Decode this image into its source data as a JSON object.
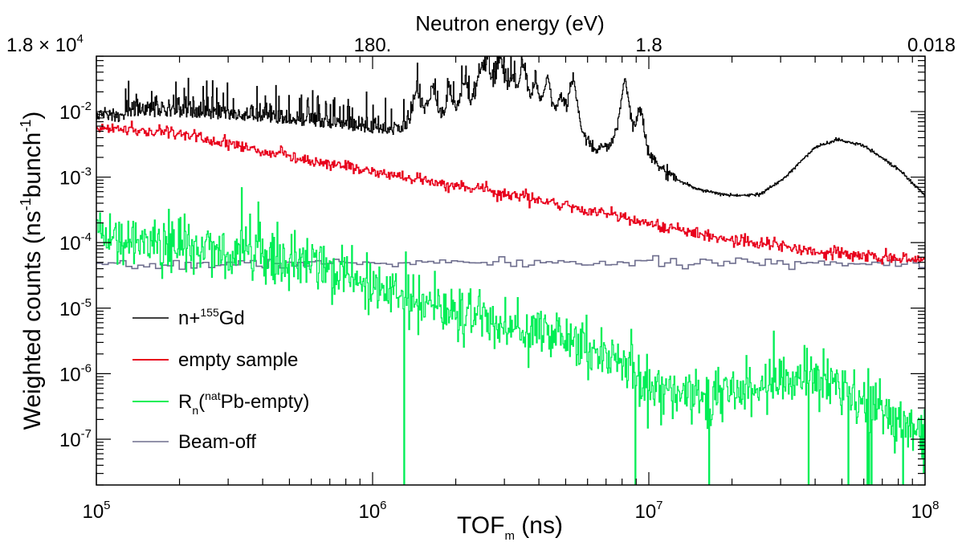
{
  "chart_data": {
    "type": "line",
    "title": "",
    "x_axis": {
      "label_main": "TOF",
      "label_sub": "m",
      "label_unit": " (ns)",
      "scale": "log",
      "range": [
        100000,
        100000000
      ],
      "ticks": [
        {
          "value": 100000,
          "base": "10",
          "exp": "5"
        },
        {
          "value": 1000000,
          "base": "10",
          "exp": "6"
        },
        {
          "value": 10000000,
          "base": "10",
          "exp": "7"
        },
        {
          "value": 100000000,
          "base": "10",
          "exp": "8"
        }
      ]
    },
    "y_axis": {
      "label_main": "Weighted counts (ns",
      "label_sup1": "-1",
      "label_mid": "bunch",
      "label_sup2": "-1",
      "label_end": ")",
      "scale": "log",
      "range": [
        2e-08,
        0.07
      ],
      "ticks": [
        {
          "value": 1e-07,
          "base": "10",
          "exp": "-7"
        },
        {
          "value": 1e-06,
          "base": "10",
          "exp": "-6"
        },
        {
          "value": 1e-05,
          "base": "10",
          "exp": "-5"
        },
        {
          "value": 0.0001,
          "base": "10",
          "exp": "-4"
        },
        {
          "value": 0.001,
          "base": "10",
          "exp": "-3"
        },
        {
          "value": 0.01,
          "base": "10",
          "exp": "-2"
        }
      ]
    },
    "top_axis": {
      "label": "Neutron energy (eV)",
      "ticks": [
        {
          "tof": 100000,
          "label": "1.8",
          "mult": " × ",
          "base": "10",
          "exp": "4"
        },
        {
          "tof": 1000000,
          "label": "180."
        },
        {
          "tof": 10000000,
          "label": "1.8"
        },
        {
          "tof": 100000000,
          "label": "0.018"
        }
      ]
    },
    "legend": {
      "position": "bottom-left",
      "entries": [
        {
          "prefix": "n+",
          "sup": "155",
          "suffix": "Gd",
          "color": "#000000"
        },
        {
          "text": "empty sample",
          "color": "#e8001c"
        },
        {
          "prefix": "R",
          "sub": "n",
          "mid": "(",
          "sup": "nat",
          "suffix": "Pb-empty)",
          "color": "#00ee55"
        },
        {
          "text": "Beam-off",
          "color": "#6e6e8e"
        }
      ]
    },
    "series": [
      {
        "name": "n+155Gd",
        "color": "#000000",
        "baseline": [
          [
            100000,
            0.009
          ],
          [
            200000,
            0.0088
          ],
          [
            400000,
            0.0075
          ],
          [
            800000,
            0.0055
          ],
          [
            1500000,
            0.0035
          ],
          [
            3000000,
            0.0022
          ],
          [
            6000000,
            0.0013
          ],
          [
            10000000,
            0.0008
          ],
          [
            15000000,
            0.00045
          ],
          [
            20000000,
            0.0004
          ],
          [
            25000000,
            0.00045
          ],
          [
            30000000,
            0.0008
          ],
          [
            40000000,
            0.0028
          ],
          [
            48000000,
            0.0037
          ],
          [
            60000000,
            0.003
          ],
          [
            80000000,
            0.0013
          ],
          [
            100000000,
            0.0005
          ]
        ],
        "peaks": [
          {
            "tof": 1450000,
            "value": 0.018
          },
          {
            "tof": 1650000,
            "value": 0.02
          },
          {
            "tof": 1900000,
            "value": 0.016
          },
          {
            "tof": 2150000,
            "value": 0.022
          },
          {
            "tof": 2450000,
            "value": 0.03
          },
          {
            "tof": 2600000,
            "value": 0.04
          },
          {
            "tof": 2900000,
            "value": 0.055
          },
          {
            "tof": 3200000,
            "value": 0.022
          },
          {
            "tof": 3500000,
            "value": 0.045
          },
          {
            "tof": 3900000,
            "value": 0.018
          },
          {
            "tof": 4300000,
            "value": 0.03
          },
          {
            "tof": 4800000,
            "value": 0.012
          },
          {
            "tof": 5300000,
            "value": 0.03
          },
          {
            "tof": 6800000,
            "value": 0.0015
          },
          {
            "tof": 8200000,
            "value": 0.03
          },
          {
            "tof": 9300000,
            "value": 0.009
          }
        ]
      },
      {
        "name": "empty sample",
        "color": "#e8001c",
        "baseline": [
          [
            100000,
            0.0058
          ],
          [
            200000,
            0.0046
          ],
          [
            400000,
            0.0025
          ],
          [
            700000,
            0.0016
          ],
          [
            1000000,
            0.0012
          ],
          [
            2000000,
            0.00075
          ],
          [
            4000000,
            0.00045
          ],
          [
            7000000,
            0.00028
          ],
          [
            10000000,
            0.00019
          ],
          [
            20000000,
            0.00011
          ],
          [
            40000000,
            7.5e-05
          ],
          [
            70000000,
            6e-05
          ],
          [
            100000000,
            5.3e-05
          ]
        ]
      },
      {
        "name": "Rn(natPb-empty)",
        "color": "#00ee55",
        "baseline": [
          [
            100000,
            0.00011
          ],
          [
            200000,
            9e-05
          ],
          [
            400000,
            7e-05
          ],
          [
            700000,
            4.5e-05
          ],
          [
            1000000,
            2.2e-05
          ],
          [
            2000000,
            9e-06
          ],
          [
            4000000,
            4e-06
          ],
          [
            6000000,
            2.5e-06
          ],
          [
            8500000,
            1.2e-06
          ],
          [
            9500000,
            6e-07
          ],
          [
            15000000,
            4.5e-07
          ],
          [
            25000000,
            6e-07
          ],
          [
            40000000,
            9e-07
          ],
          [
            60000000,
            4e-07
          ],
          [
            100000000,
            9e-08
          ]
        ]
      },
      {
        "name": "Beam-off",
        "color": "#6e6e8e",
        "baseline": [
          [
            100000,
            4.3e-05
          ],
          [
            200000,
            4.6e-05
          ],
          [
            500000,
            4.8e-05
          ],
          [
            1000000,
            4.9e-05
          ],
          [
            10000000,
            4.9e-05
          ],
          [
            100000000,
            4.9e-05
          ]
        ]
      }
    ]
  }
}
